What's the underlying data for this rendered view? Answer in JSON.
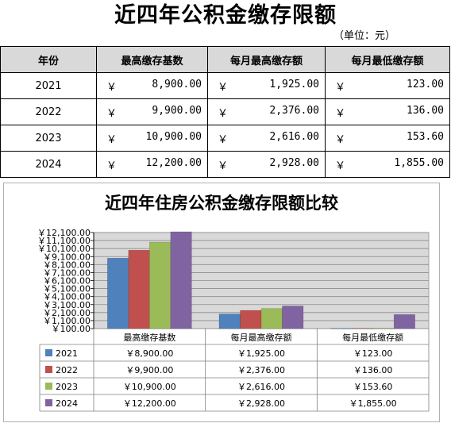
{
  "page": {
    "title": "近四年公积金缴存限额",
    "unit": "（单位：元）"
  },
  "table": {
    "headers": [
      "年份",
      "最高缴存基数",
      "每月最高缴存额",
      "每月最低缴存额"
    ],
    "currency_symbol": "￥",
    "rows": [
      {
        "year": "2021",
        "base": "8,900.00",
        "max": "1,925.00",
        "min": "123.00"
      },
      {
        "year": "2022",
        "base": "9,900.00",
        "max": "2,376.00",
        "min": "136.00"
      },
      {
        "year": "2023",
        "base": "10,900.00",
        "max": "2,616.00",
        "min": "153.60"
      },
      {
        "year": "2024",
        "base": "12,200.00",
        "max": "2,928.00",
        "min": "1,855.00"
      }
    ]
  },
  "chart_data": {
    "type": "bar",
    "title": "近四年住房公积金缴存限额比较",
    "categories": [
      "最高缴存基数",
      "每月最高缴存额",
      "每月最低缴存额"
    ],
    "series": [
      {
        "name": "2021",
        "color": "#4f81bd",
        "values": [
          8900,
          1925,
          123
        ],
        "labels": [
          "￥8,900.00",
          "￥1,925.00",
          "￥123.00"
        ]
      },
      {
        "name": "2022",
        "color": "#c0504d",
        "values": [
          9900,
          2376,
          136
        ],
        "labels": [
          "￥9,900.00",
          "￥2,376.00",
          "￥136.00"
        ]
      },
      {
        "name": "2023",
        "color": "#9bbb59",
        "values": [
          10900,
          2616,
          153.6
        ],
        "labels": [
          "￥10,900.00",
          "￥2,616.00",
          "￥153.60"
        ]
      },
      {
        "name": "2024",
        "color": "#8064a2",
        "values": [
          12200,
          2928,
          1855
        ],
        "labels": [
          "￥12,200.00",
          "￥2,928.00",
          "￥1,855.00"
        ]
      }
    ],
    "ylim": [
      100,
      12100
    ],
    "yticks": [
      100,
      1100,
      2100,
      3100,
      4100,
      5100,
      6100,
      7100,
      8100,
      9100,
      10100,
      11100,
      12100
    ],
    "ytick_labels": [
      "￥100.00",
      "￥1,100.00",
      "￥2,100.00",
      "￥3,100.00",
      "￥4,100.00",
      "￥5,100.00",
      "￥6,100.00",
      "￥7,100.00",
      "￥8,100.00",
      "￥9,100.00",
      "￥10,100.00",
      "￥11,100.00",
      "￥12,100.00"
    ],
    "grid": true,
    "legend": "data-table-left",
    "plot_background": "#d9d9d9"
  }
}
